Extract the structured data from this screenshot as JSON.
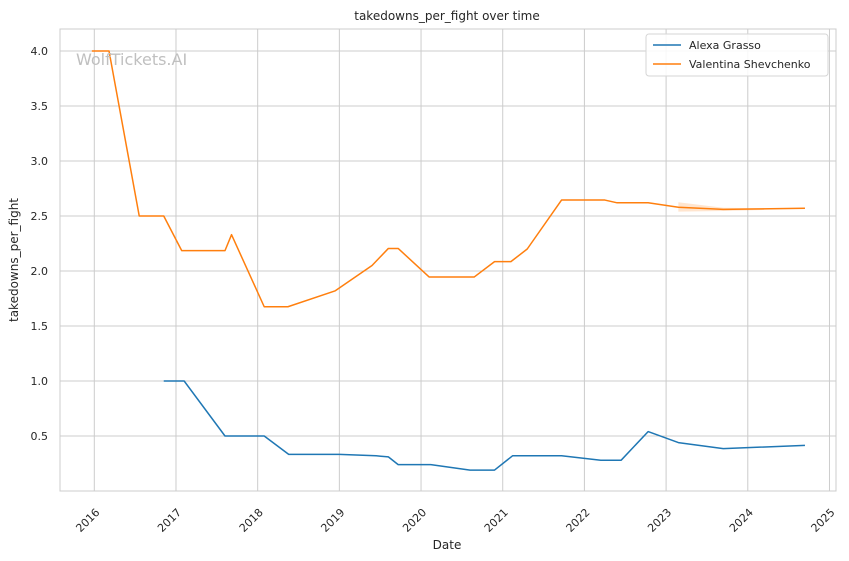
{
  "chart_data": {
    "type": "line",
    "title": "takedowns_per_fight over time",
    "xlabel": "Date",
    "ylabel": "takedowns_per_fight",
    "watermark": "WolfTickets.AI",
    "xlim": [
      2015.58,
      2025.08
    ],
    "ylim": [
      0.0,
      4.2
    ],
    "x_ticks": [
      2016,
      2017,
      2018,
      2019,
      2020,
      2021,
      2022,
      2023,
      2024,
      2025
    ],
    "x_tick_labels": [
      "2016",
      "2017",
      "2018",
      "2019",
      "2020",
      "2021",
      "2022",
      "2023",
      "2024",
      "2025"
    ],
    "y_ticks": [
      0.5,
      1.0,
      1.5,
      2.0,
      2.5,
      3.0,
      3.5,
      4.0
    ],
    "y_tick_labels": [
      "0.5",
      "1.0",
      "1.5",
      "2.0",
      "2.5",
      "3.0",
      "3.5",
      "4.0"
    ],
    "grid": true,
    "legend_position": "top-right",
    "series": [
      {
        "name": "Alexa Grasso",
        "color": "#1f77b4",
        "x": [
          2016.85,
          2017.1,
          2017.6,
          2018.08,
          2018.38,
          2019.0,
          2019.45,
          2019.6,
          2019.72,
          2020.12,
          2020.6,
          2020.9,
          2021.12,
          2021.72,
          2022.2,
          2022.45,
          2022.78,
          2023.15,
          2023.7,
          2024.7
        ],
        "values": [
          1.0,
          1.0,
          0.5,
          0.5,
          0.333,
          0.333,
          0.32,
          0.31,
          0.24,
          0.24,
          0.19,
          0.19,
          0.32,
          0.32,
          0.28,
          0.28,
          0.54,
          0.44,
          0.385,
          0.415
        ]
      },
      {
        "name": "Valentina Shevchenko",
        "color": "#ff7f0e",
        "x": [
          2015.97,
          2016.18,
          2016.55,
          2016.85,
          2017.07,
          2017.6,
          2017.68,
          2018.08,
          2018.37,
          2018.95,
          2019.4,
          2019.6,
          2019.72,
          2020.1,
          2020.65,
          2020.9,
          2021.1,
          2021.3,
          2021.72,
          2022.25,
          2022.4,
          2022.78,
          2023.15,
          2023.7,
          2024.7
        ],
        "values": [
          4.0,
          4.0,
          2.5,
          2.5,
          2.185,
          2.185,
          2.33,
          1.675,
          1.675,
          1.82,
          2.05,
          2.205,
          2.205,
          1.945,
          1.945,
          2.085,
          2.085,
          2.2,
          2.645,
          2.645,
          2.62,
          2.62,
          2.58,
          2.56,
          2.57
        ]
      }
    ],
    "confidence_band": {
      "series": "Valentina Shevchenko",
      "x": [
        2023.15,
        2023.7,
        2024.2
      ],
      "lower": [
        2.54,
        2.545,
        2.555
      ],
      "upper": [
        2.625,
        2.575,
        2.57
      ]
    }
  }
}
